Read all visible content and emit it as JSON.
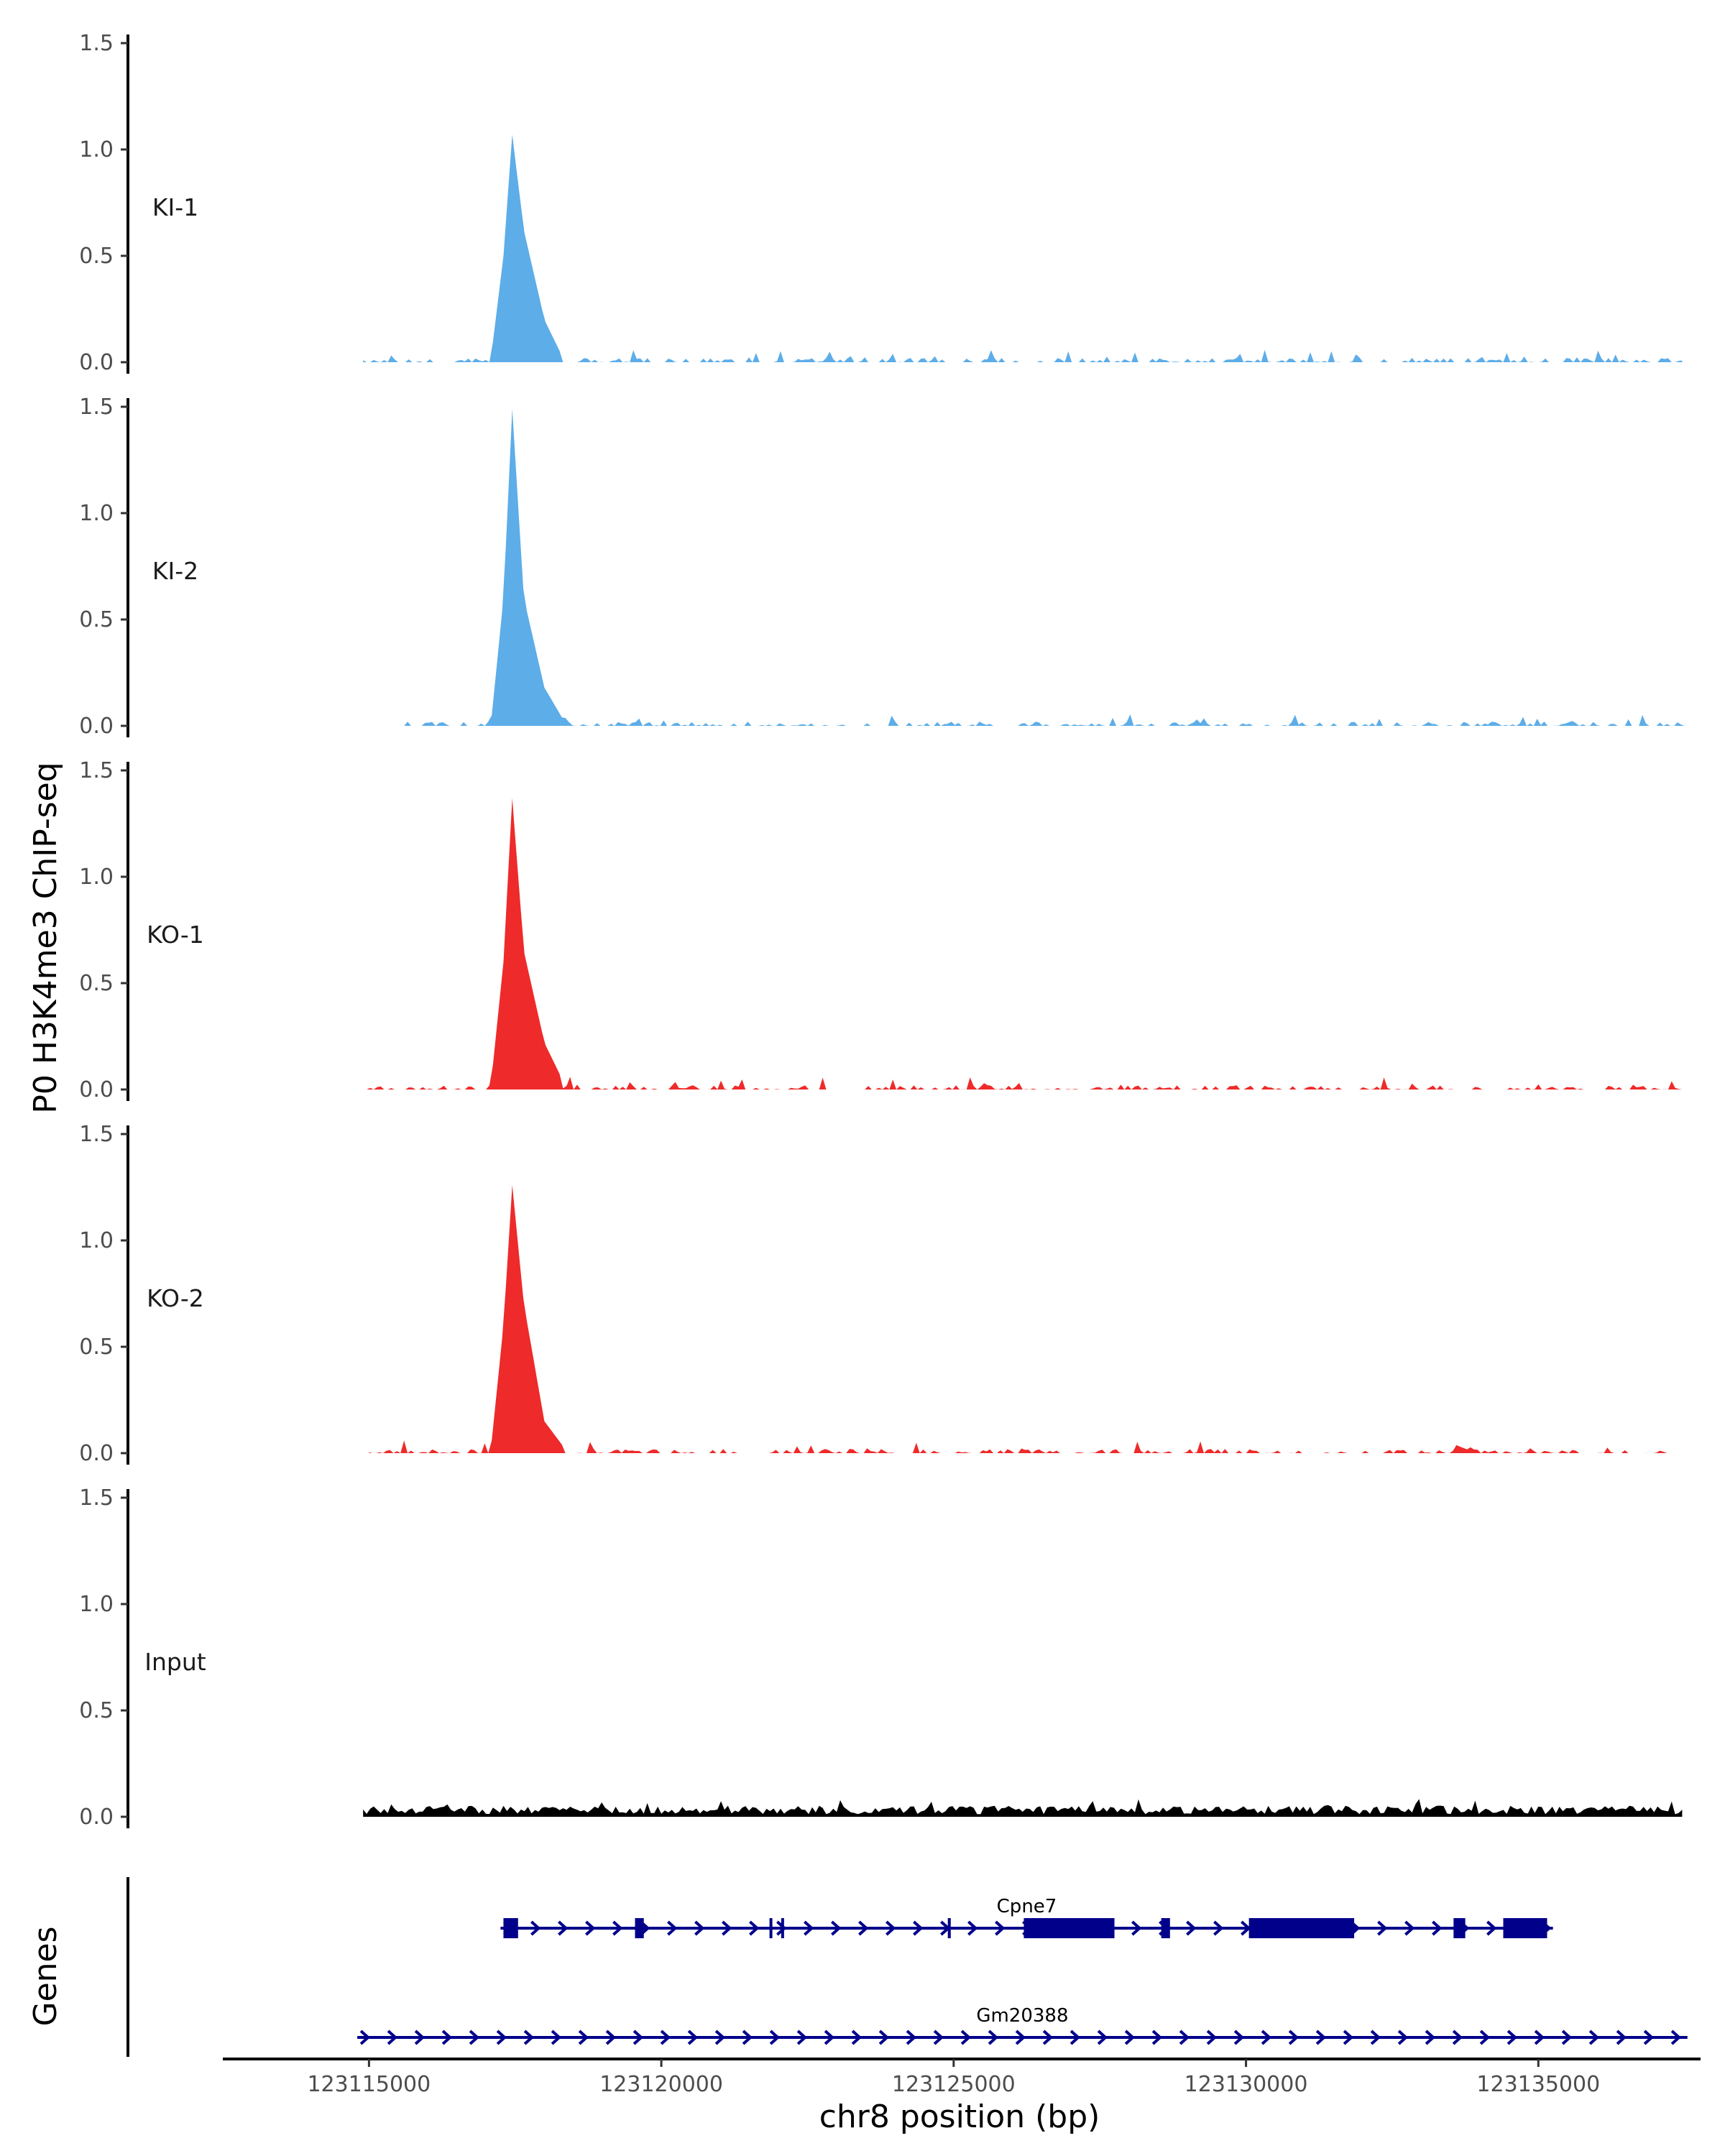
{
  "chart_data": {
    "type": "area",
    "ylabel": "P0 H3K4me3 ChIP-seq",
    "xlabel": "chr8 position (bp)",
    "xlim": [
      123112500,
      123137750
    ],
    "ylim": [
      0,
      1.5
    ],
    "y_ticks": [
      0,
      0.5,
      1,
      1.5
    ],
    "y_tick_labels": [
      "0.0",
      "0.5",
      "1.0",
      "1.5"
    ],
    "x_ticks": [
      123115000,
      123120000,
      123125000,
      123130000,
      123135000
    ],
    "x_tick_labels": [
      "123115000",
      "123120000",
      "123125000",
      "123130000",
      "123135000"
    ],
    "grid": false,
    "legend": "none",
    "series": [
      {
        "name": "KI-1",
        "color": "#5dade8",
        "x_start": 123114900,
        "x_end": 123137500,
        "peak_x": 123117450,
        "peak_y": 1.07,
        "points": [
          [
            123117100,
            0.05
          ],
          [
            123117300,
            0.5
          ],
          [
            123117450,
            1.07
          ],
          [
            123117650,
            0.62
          ],
          [
            123118000,
            0.2
          ],
          [
            123118300,
            0.03
          ]
        ]
      },
      {
        "name": "KI-2",
        "color": "#5dade8",
        "x_start": 123115600,
        "x_end": 123137500,
        "peak_x": 123117450,
        "peak_y": 1.49,
        "points": [
          [
            123117100,
            0.05
          ],
          [
            123117300,
            0.6
          ],
          [
            123117450,
            1.49
          ],
          [
            123117650,
            0.6
          ],
          [
            123118000,
            0.18
          ],
          [
            123118300,
            0.04
          ]
        ]
      },
      {
        "name": "KO-1",
        "color": "#ee2a2a",
        "x_start": 123114900,
        "x_end": 123137500,
        "peak_x": 123117450,
        "peak_y": 1.37,
        "points": [
          [
            123117100,
            0.06
          ],
          [
            123117300,
            0.6
          ],
          [
            123117450,
            1.37
          ],
          [
            123117650,
            0.65
          ],
          [
            123118000,
            0.22
          ],
          [
            123118300,
            0.05
          ]
        ]
      },
      {
        "name": "KO-2",
        "color": "#ee2a2a",
        "x_start": 123115000,
        "x_end": 123137500,
        "peak_x": 123117450,
        "peak_y": 1.26,
        "points": [
          [
            123117100,
            0.06
          ],
          [
            123117300,
            0.6
          ],
          [
            123117450,
            1.26
          ],
          [
            123117650,
            0.7
          ],
          [
            123118000,
            0.15
          ],
          [
            123118300,
            0.04
          ]
        ]
      },
      {
        "name": "Input",
        "color": "#000000",
        "x_start": 123114900,
        "x_end": 123137500,
        "peak_x": null,
        "peak_y": 0.07,
        "points": []
      }
    ],
    "genes_track_label": "Genes",
    "genes": [
      {
        "name": "Cpne7",
        "color": "#00008b",
        "strand": "+",
        "start": 123117250,
        "end": 123135250,
        "exons": [
          [
            123117300,
            123117550
          ],
          [
            123119550,
            123119700
          ],
          [
            123121850,
            123121880
          ],
          [
            123122050,
            123122080
          ],
          [
            123124900,
            123124950
          ],
          [
            123126200,
            123127750
          ],
          [
            123128550,
            123128700
          ],
          [
            123130050,
            123131850
          ],
          [
            123133550,
            123133750
          ],
          [
            123134400,
            123135150
          ]
        ]
      },
      {
        "name": "Gm20388",
        "color": "#00008b",
        "strand": "+",
        "start": 123114800,
        "end": 123137550,
        "exons": []
      }
    ]
  }
}
